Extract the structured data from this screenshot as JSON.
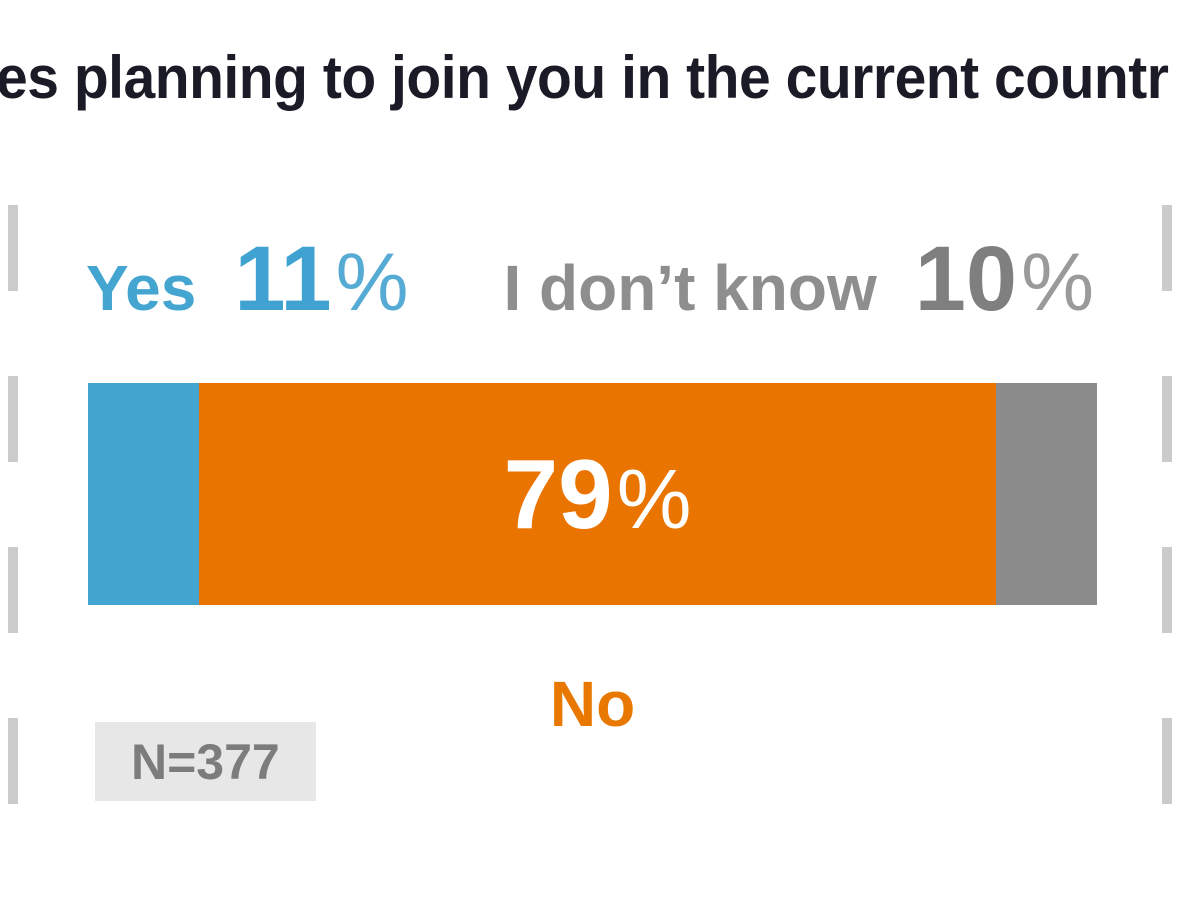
{
  "title": {
    "visible_text": "es planning to join you in the current countr"
  },
  "chart_data": {
    "type": "bar",
    "subtype": "single-horizontal-stacked-bar",
    "title": "es planning to join you in the current countr",
    "categories": [
      "Yes",
      "No",
      "I don’t know"
    ],
    "values": [
      11,
      79,
      10
    ],
    "unit": "%",
    "sample_size": "N=377",
    "segment_colors": [
      "#45a5d1",
      "#ea7400",
      "#8b8b8b"
    ],
    "value_labels": [
      "Yes 11%",
      "79%",
      "I don’t know 10%"
    ],
    "legend_position": "category labels above bar (Yes, I don’t know), below bar (No), value for No inside bar",
    "axis": "none",
    "grid": false
  },
  "labels": {
    "yes": {
      "text": "Yes",
      "value": "11",
      "percent_sign": "%"
    },
    "dont_know": {
      "text": "I don’t know",
      "value": "10",
      "percent_sign": "%"
    },
    "no_value": {
      "value": "79",
      "percent_sign": "%"
    },
    "no_category": "No",
    "sample_size": "N=377"
  },
  "colors": {
    "title_text": "#1b1b27",
    "yes_blue": "#45a5d1",
    "no_orange": "#ea7400",
    "dont_know_gray": "#8b8b8b",
    "legend_gray_text": "#8e8e8e",
    "bar_value_text": "#ffffff",
    "no_label_orange": "#e87800",
    "badge_background": "#e7e7e7",
    "badge_text": "#7c7c7c",
    "edge_dash_gray": "#cbcbcb",
    "background": "#ffffff"
  }
}
